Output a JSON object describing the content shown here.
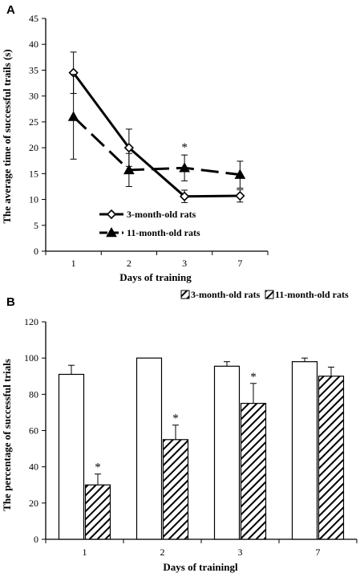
{
  "chart_data": [
    {
      "panel": "A",
      "type": "line",
      "categories": [
        "1",
        "2",
        "3",
        "7"
      ],
      "xlabel": "Days of training",
      "ylabel": "The average time of successful trails (s)",
      "ylim": [
        0,
        45
      ],
      "yticks": [
        "0",
        "5",
        "10",
        "15",
        "20",
        "25",
        "30",
        "35",
        "40",
        "45"
      ],
      "grid": false,
      "legend_position": "bottom-left",
      "series": [
        {
          "name": "3-month-old rats",
          "marker": "diamond",
          "line": "solid",
          "values": [
            34.5,
            20.0,
            10.6,
            10.7
          ],
          "errors": [
            4.0,
            3.6,
            1.2,
            1.2
          ]
        },
        {
          "name": "11-month-old rats",
          "marker": "triangle",
          "line": "dashed",
          "values": [
            26.0,
            15.7,
            16.1,
            14.8
          ],
          "errors": [
            8.2,
            3.2,
            2.5,
            2.6
          ]
        }
      ],
      "annotations": [
        {
          "category": "3",
          "text": "*"
        }
      ]
    },
    {
      "panel": "B",
      "type": "bar",
      "categories": [
        "1",
        "2",
        "3",
        "7"
      ],
      "xlabel": "Days of trainingl",
      "ylabel": "The percentage of successful trials",
      "ylim": [
        0,
        120
      ],
      "yticks": [
        "0",
        "20",
        "40",
        "60",
        "80",
        "100",
        "120"
      ],
      "grid": false,
      "legend_position": "top",
      "series": [
        {
          "name": "3-month-old rats",
          "fill": "white",
          "values": [
            91,
            100,
            95.5,
            98
          ],
          "errors": [
            5,
            0,
            2.5,
            2
          ]
        },
        {
          "name": "11-month-old rats",
          "fill": "hatched",
          "values": [
            30,
            55,
            75,
            90
          ],
          "errors": [
            6,
            8,
            11,
            5
          ]
        }
      ],
      "annotations": [
        {
          "category": "1",
          "text": "*"
        },
        {
          "category": "2",
          "text": "*"
        },
        {
          "category": "3",
          "text": "*"
        }
      ]
    }
  ]
}
